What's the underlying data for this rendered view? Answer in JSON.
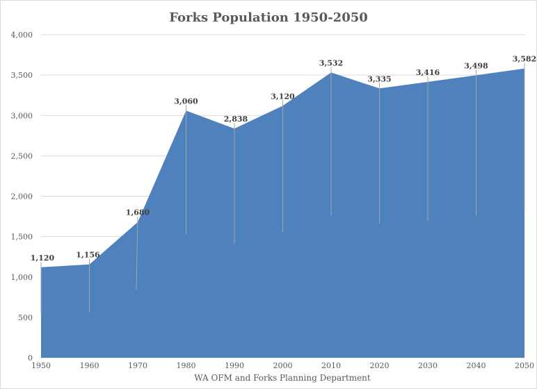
{
  "chart_data": {
    "type": "area",
    "title": "Forks Population 1950-2050",
    "xlabel": "WA OFM and Forks Planning Department",
    "ylabel": "",
    "x": [
      1950,
      1960,
      1970,
      1980,
      1990,
      2000,
      2010,
      2020,
      2030,
      2040,
      2050
    ],
    "series": [
      {
        "values": [
          1120,
          1156,
          1680,
          3060,
          2838,
          3120,
          3532,
          3335,
          3416,
          3498,
          3582
        ]
      }
    ],
    "data_labels": [
      "1,120",
      "1,156",
      "1,680",
      "3,060",
      "2,838",
      "3,120",
      "3,532",
      "3,335",
      "3,416",
      "3,498",
      "3,582"
    ],
    "x_tick_labels": [
      "1950",
      "1960",
      "1970",
      "1980",
      "1990",
      "2000",
      "2010",
      "2020",
      "2030",
      "2040",
      "2050"
    ],
    "y_ticks": [
      0,
      500,
      1000,
      1500,
      2000,
      2500,
      3000,
      3500,
      4000
    ],
    "y_tick_labels": [
      "0",
      "500",
      "1,000",
      "1,500",
      "2,000",
      "2,500",
      "3,000",
      "3,500",
      "4,000"
    ],
    "ylim": [
      0,
      4000
    ],
    "xlim": [
      1950,
      2050
    ],
    "grid": true,
    "legend": "none",
    "colors": {
      "area_fill": "#4f81bd",
      "grid": "#d9d9d9",
      "text": "#595959",
      "leader": "#a6a6a6"
    }
  }
}
